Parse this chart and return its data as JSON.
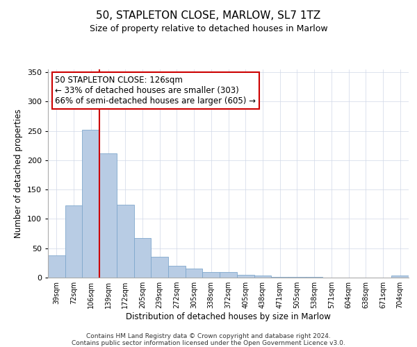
{
  "title": "50, STAPLETON CLOSE, MARLOW, SL7 1TZ",
  "subtitle": "Size of property relative to detached houses in Marlow",
  "xlabel": "Distribution of detached houses by size in Marlow",
  "ylabel": "Number of detached properties",
  "bar_labels": [
    "39sqm",
    "72sqm",
    "106sqm",
    "139sqm",
    "172sqm",
    "205sqm",
    "239sqm",
    "272sqm",
    "305sqm",
    "338sqm",
    "372sqm",
    "405sqm",
    "438sqm",
    "471sqm",
    "505sqm",
    "538sqm",
    "571sqm",
    "604sqm",
    "638sqm",
    "671sqm",
    "704sqm"
  ],
  "bar_heights": [
    38,
    123,
    252,
    212,
    124,
    67,
    35,
    20,
    15,
    10,
    10,
    5,
    3,
    1,
    1,
    1,
    0,
    0,
    0,
    0,
    4
  ],
  "bar_color": "#b8cce4",
  "bar_edgecolor": "#7fa7cc",
  "vline_x_index": 2,
  "vline_color": "#cc0000",
  "ylim": [
    0,
    355
  ],
  "yticks": [
    0,
    50,
    100,
    150,
    200,
    250,
    300,
    350
  ],
  "annotation_title": "50 STAPLETON CLOSE: 126sqm",
  "annotation_line1": "← 33% of detached houses are smaller (303)",
  "annotation_line2": "66% of semi-detached houses are larger (605) →",
  "annotation_box_color": "#ffffff",
  "annotation_box_edgecolor": "#cc0000",
  "footer1": "Contains HM Land Registry data © Crown copyright and database right 2024.",
  "footer2": "Contains public sector information licensed under the Open Government Licence v3.0.",
  "background_color": "#ffffff",
  "grid_color": "#d0d8e8"
}
